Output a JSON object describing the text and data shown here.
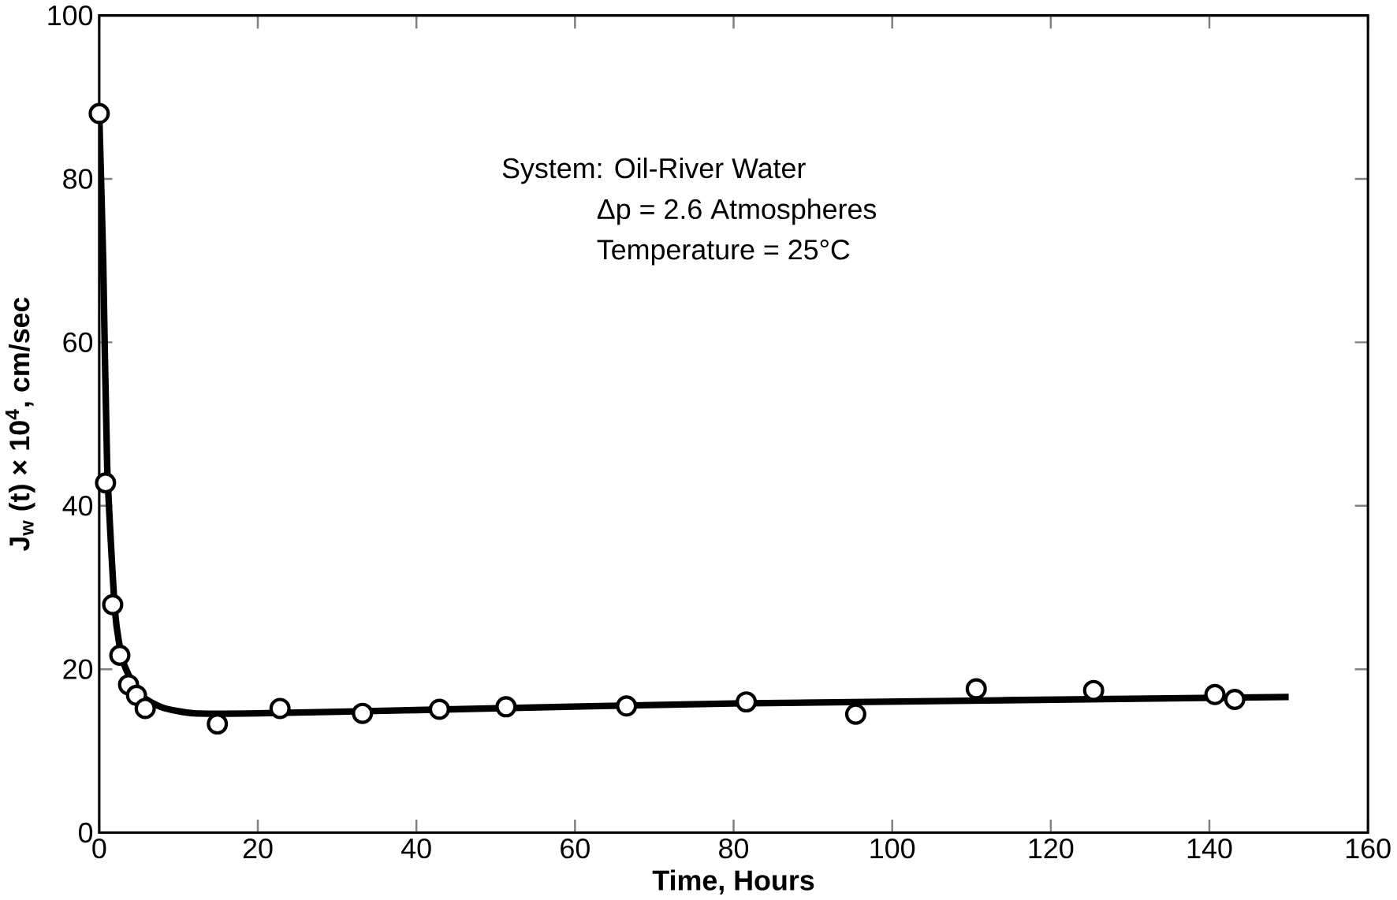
{
  "chart_data": {
    "type": "scatter",
    "xlabel": "Time, Hours",
    "ylabel": "J$_{w}$ (t) × 10$^{4}$, cm/sec",
    "xlim": [
      0,
      160
    ],
    "ylim": [
      0,
      100
    ],
    "xticks": [
      0,
      20,
      40,
      60,
      80,
      100,
      120,
      140,
      160
    ],
    "yticks": [
      0,
      20,
      40,
      60,
      80,
      100
    ],
    "grid": false,
    "annotations": [
      "System: Oil-River Water",
      "Δp = 2.6 Atmospheres",
      "Temperature = 25°C"
    ],
    "series": [
      {
        "marker": "circle",
        "color": "#000000",
        "x": [
          0,
          0.8,
          1.7,
          2.6,
          3.7,
          4.7,
          5.8,
          14.9,
          22.8,
          33.2,
          42.9,
          51.3,
          66.5,
          81.6,
          95.4,
          110.6,
          125.4,
          140.7,
          143.2
        ],
        "values": [
          88,
          42.8,
          27.9,
          21.7,
          18.1,
          16.8,
          15.2,
          13.3,
          15.2,
          14.6,
          15.1,
          15.4,
          15.5,
          16,
          14.5,
          17.6,
          17.4,
          16.9,
          16.3
        ]
      },
      {
        "type": "line",
        "color": "#000000",
        "marker": "none",
        "line_style": "solid",
        "x": [
          0,
          0.5,
          1,
          2,
          3,
          5,
          8,
          12,
          20,
          40,
          80,
          150
        ],
        "values": [
          88,
          70,
          45,
          27,
          21,
          17,
          15.3,
          14.6,
          14.6,
          15,
          15.8,
          16.6
        ]
      }
    ]
  }
}
